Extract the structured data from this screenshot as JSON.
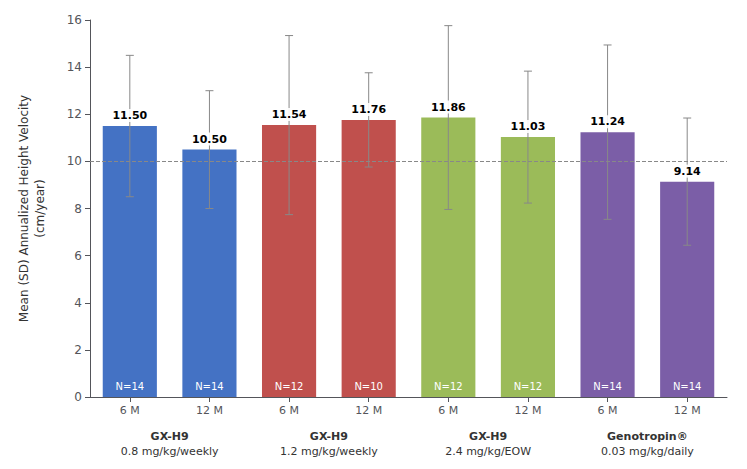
{
  "chart_data": {
    "type": "bar",
    "categories": [
      "6 M",
      "12 M",
      "6 M",
      "12 M",
      "6 M",
      "12 M",
      "6 M",
      "12 M"
    ],
    "values": [
      11.5,
      10.5,
      11.54,
      11.76,
      11.86,
      11.03,
      11.24,
      9.14
    ],
    "value_labels": [
      "11.50",
      "10.50",
      "11.54",
      "11.76",
      "11.86",
      "11.03",
      "11.24",
      "9.14"
    ],
    "data_labels": true,
    "colors": [
      "#4472C4",
      "#4472C4",
      "#C0504D",
      "#C0504D",
      "#9BBB59",
      "#9BBB59",
      "#7B5EA7",
      "#7B5EA7"
    ],
    "error_up": [
      3.0,
      2.5,
      3.8,
      2.0,
      3.9,
      2.8,
      3.7,
      2.7
    ],
    "error_down": [
      3.0,
      2.5,
      3.8,
      2.0,
      3.9,
      2.8,
      3.7,
      2.7
    ],
    "n_labels": [
      "N=14",
      "N=14",
      "N=12",
      "N=10",
      "N=12",
      "N=12",
      "N=14",
      "N=14"
    ],
    "group_labels": [
      [
        "GX-H9",
        "0.8 mg/kg/weekly"
      ],
      [
        "GX-H9",
        "1.2 mg/kg/weekly"
      ],
      [
        "GX-H9",
        "2.4 mg/kg/EOW"
      ],
      [
        "Genotropin®",
        "0.03 mg/kg/daily"
      ]
    ],
    "hline": 10.0,
    "ylabel": "Mean (SD) Annualized Height Velocity\n(cm/year)",
    "ylim": [
      0,
      16
    ],
    "yticks": [
      0,
      2,
      4,
      6,
      8,
      10,
      12,
      14,
      16
    ],
    "grid": false
  }
}
